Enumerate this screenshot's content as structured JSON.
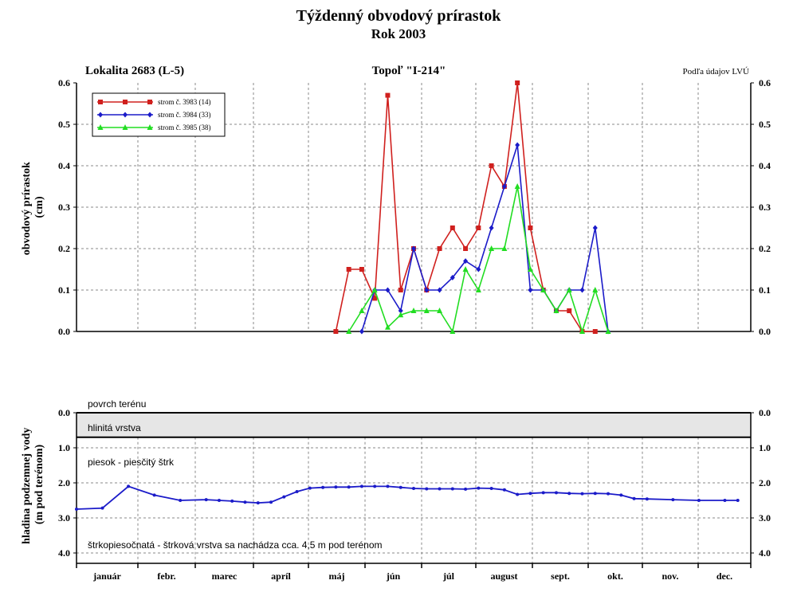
{
  "title": "Týždenný obvodový prírastok",
  "subtitle": "Rok 2003",
  "top_chart": {
    "location": "Lokalita 2683 (L-5)",
    "tree_type": "Topoľ \"I-214\"",
    "source": "Podľa údajov LVÚ"
  },
  "colors": {
    "series1": "#d0201e",
    "series2": "#1b1bc9",
    "series3": "#22dd22",
    "water": "#1b1bc9",
    "layer_fill": "#e6e6e6"
  },
  "months": [
    "január",
    "febr.",
    "marec",
    "apríl",
    "máj",
    "jún",
    "júl",
    "august",
    "sept.",
    "okt.",
    "nov.",
    "dec."
  ],
  "chart_data": [
    {
      "type": "line",
      "ylabel": "obvodový prírastok\n(cm)",
      "xlabel": "",
      "x_unit": "week",
      "xlim": [
        1,
        53
      ],
      "ylim": [
        0,
        0.6
      ],
      "yticks": [
        "0.0",
        "0.1",
        "0.2",
        "0.3",
        "0.4",
        "0.5",
        "0.6"
      ],
      "grid": true,
      "legend_position": "top-left",
      "series": [
        {
          "name": "strom č. 3983 (14)",
          "color": "#d0201e",
          "marker": "square",
          "x": [
            21,
            22,
            23,
            24,
            25,
            26,
            27,
            28,
            29,
            30,
            31,
            32,
            33,
            34,
            35,
            36,
            37,
            38,
            39,
            40,
            41
          ],
          "y": [
            0.0,
            0.15,
            0.15,
            0.08,
            0.57,
            0.1,
            0.2,
            0.1,
            0.2,
            0.25,
            0.2,
            0.25,
            0.4,
            0.35,
            0.6,
            0.25,
            0.1,
            0.05,
            0.05,
            0.0,
            0.0
          ]
        },
        {
          "name": "strom č. 3984 (33)",
          "color": "#1b1bc9",
          "marker": "diamond",
          "x": [
            23,
            24,
            25,
            26,
            27,
            28,
            29,
            30,
            31,
            32,
            33,
            34,
            35,
            36,
            37,
            38,
            39,
            40,
            41,
            42
          ],
          "y": [
            0.0,
            0.1,
            0.1,
            0.05,
            0.2,
            0.1,
            0.1,
            0.13,
            0.17,
            0.15,
            0.25,
            0.35,
            0.45,
            0.1,
            0.1,
            0.05,
            0.1,
            0.1,
            0.25,
            0.0
          ]
        },
        {
          "name": "strom č. 3985 (38)",
          "color": "#22dd22",
          "marker": "triangle",
          "x": [
            22,
            23,
            24,
            25,
            26,
            27,
            28,
            29,
            30,
            31,
            32,
            33,
            34,
            35,
            36,
            37,
            38,
            39,
            40,
            41,
            42
          ],
          "y": [
            0.0,
            0.05,
            0.1,
            0.01,
            0.04,
            0.05,
            0.05,
            0.05,
            0.0,
            0.15,
            0.1,
            0.2,
            0.2,
            0.35,
            0.15,
            0.1,
            0.05,
            0.1,
            0.0,
            0.1,
            0.0
          ]
        }
      ]
    },
    {
      "type": "line",
      "ylabel": "hladina podzemnej vody\n(m pod terénom)",
      "xlabel": "",
      "x_unit": "week",
      "xlim": [
        1,
        53
      ],
      "ylim": [
        0,
        4.2
      ],
      "y_inverted": true,
      "yticks": [
        "0.0",
        "1.0",
        "2.0",
        "3.0",
        "4.0"
      ],
      "grid": true,
      "layers": {
        "surface": "povrch terénu",
        "clay": "hlinitá vrstva",
        "clay_depth": 0.7,
        "sand": "piesok - piesčitý štrk",
        "gravel": "štrkopiesočnatá - štrková vrstva sa nachádza cca. 4,5 m pod terénom"
      },
      "series": [
        {
          "name": "",
          "color": "#1b1bc9",
          "marker": "dot",
          "x": [
            1,
            3,
            5,
            7,
            9,
            11,
            12,
            13,
            14,
            15,
            16,
            17,
            18,
            19,
            20,
            21,
            22,
            23,
            24,
            25,
            26,
            27,
            28,
            29,
            30,
            31,
            32,
            33,
            34,
            35,
            36,
            37,
            38,
            39,
            40,
            41,
            42,
            43,
            44,
            45,
            47,
            49,
            51,
            52
          ],
          "y": [
            2.75,
            2.72,
            2.1,
            2.35,
            2.5,
            2.48,
            2.5,
            2.52,
            2.55,
            2.57,
            2.55,
            2.4,
            2.25,
            2.15,
            2.13,
            2.12,
            2.12,
            2.1,
            2.1,
            2.1,
            2.13,
            2.16,
            2.17,
            2.17,
            2.17,
            2.18,
            2.15,
            2.16,
            2.2,
            2.33,
            2.3,
            2.28,
            2.28,
            2.3,
            2.31,
            2.3,
            2.31,
            2.35,
            2.45,
            2.46,
            2.48,
            2.5,
            2.5,
            2.5
          ]
        }
      ]
    }
  ]
}
